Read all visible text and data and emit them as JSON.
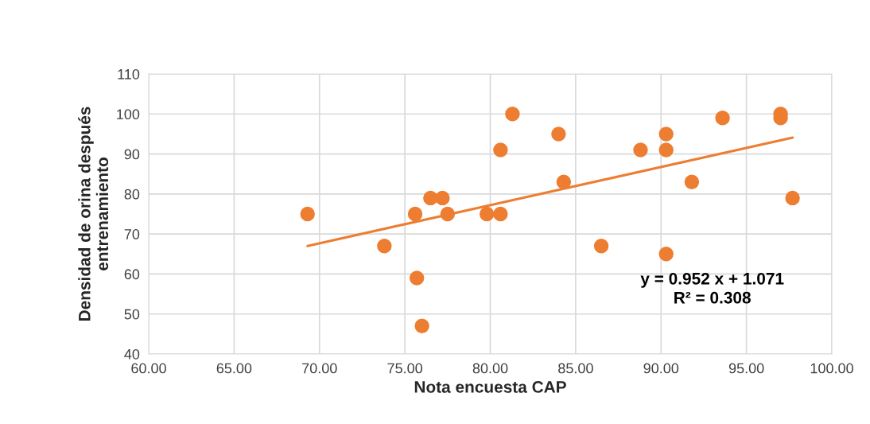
{
  "chart_data": {
    "type": "scatter",
    "xlabel": "Nota encuesta CAP",
    "ylabel": "Densidad de orina después\nentrenamiento",
    "series": [
      {
        "color": "#ed7d31",
        "marker": "circle",
        "x": [
          69.3,
          73.8,
          75.6,
          76.5,
          77.2,
          77.5,
          75.7,
          76.0,
          79.8,
          80.6,
          81.3,
          80.6,
          84.0,
          84.3,
          86.5,
          88.8,
          90.3,
          90.3,
          90.3,
          91.8,
          93.6,
          97.0,
          97.0,
          97.7
        ],
        "values": [
          75,
          67,
          75,
          79,
          79,
          75,
          59,
          47,
          75,
          75,
          100,
          91,
          95,
          83,
          67,
          91,
          95,
          91,
          65,
          83,
          99,
          100,
          99,
          79
        ]
      },
      {
        "type": "line",
        "color": "#ed7d31",
        "marker": "none",
        "x": [
          69.3,
          97.7
        ],
        "values": [
          67.0,
          94.1
        ]
      }
    ],
    "annotations": [
      "y = 0.952 x + 1.071\nR² = 0.308"
    ],
    "xlim": [
      60,
      100
    ],
    "xticks": [
      {
        "value": 60,
        "label": "60.00"
      },
      {
        "value": 65,
        "label": "65.00"
      },
      {
        "value": 70,
        "label": "70.00"
      },
      {
        "value": 75,
        "label": "75.00"
      },
      {
        "value": 80,
        "label": "80.00"
      },
      {
        "value": 85,
        "label": "85.00"
      },
      {
        "value": 90,
        "label": "90.00"
      },
      {
        "value": 95,
        "label": "95.00"
      },
      {
        "value": 100,
        "label": "100.00"
      }
    ],
    "ylim": [
      40,
      110
    ],
    "yticks": [
      40,
      50,
      60,
      70,
      80,
      90,
      100,
      110
    ],
    "grid": true,
    "legend": false
  }
}
